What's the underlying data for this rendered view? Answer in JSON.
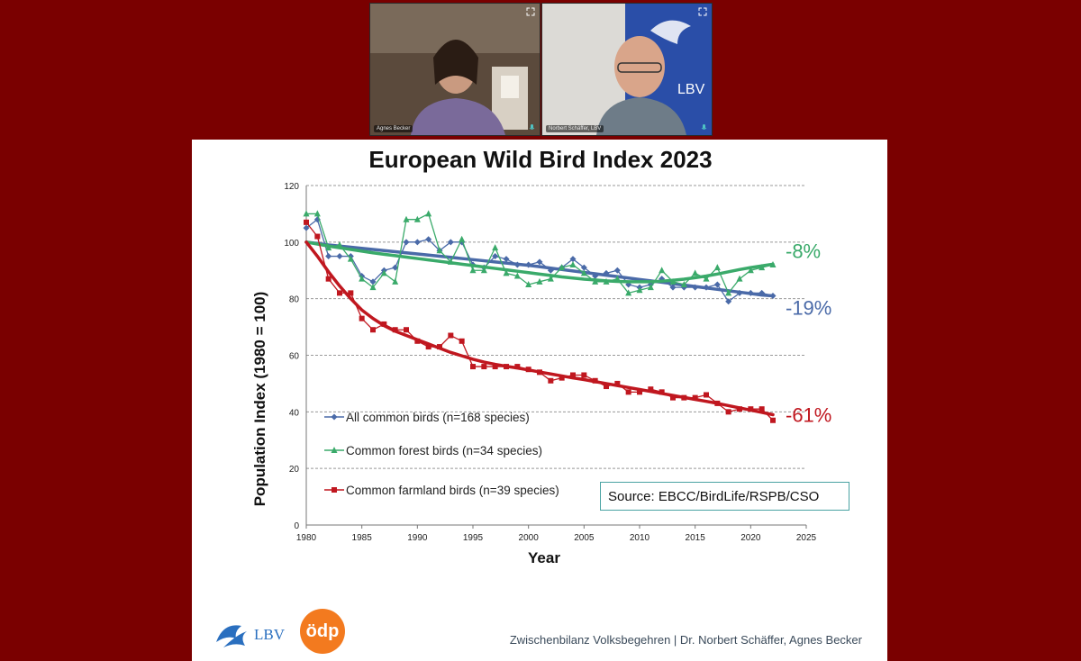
{
  "participants": [
    {
      "name": "Agnes Becker"
    },
    {
      "name": "Norbert Schäffer, LBV"
    }
  ],
  "slide": {
    "title": "European Wild Bird Index 2023",
    "source": "Source: EBCC/BirdLife/RSPB/CSO",
    "footer": "Zwischenbilanz Volksbegehren  | Dr. Norbert Schäffer, Agnes Becker",
    "logos": {
      "lbv": "LBV",
      "oedp": "ödp"
    }
  },
  "chart_data": {
    "type": "line",
    "title": "European Wild Bird Index 2023",
    "xlabel": "Year",
    "ylabel": "Population Index (1980 = 100)",
    "xlim": [
      1980,
      2025
    ],
    "ylim": [
      0,
      120
    ],
    "xticks": [
      1980,
      1985,
      1990,
      1995,
      2000,
      2005,
      2010,
      2015,
      2020,
      2025
    ],
    "yticks": [
      0,
      20,
      40,
      60,
      80,
      100,
      120
    ],
    "grid": true,
    "legend_position": "bottom-left",
    "series": [
      {
        "name": "All common birds (n=168 species)",
        "color": "#4a6aa8",
        "marker": "diamond",
        "x": [
          1980,
          1981,
          1982,
          1983,
          1984,
          1985,
          1986,
          1987,
          1988,
          1989,
          1990,
          1991,
          1992,
          1993,
          1994,
          1995,
          1996,
          1997,
          1998,
          1999,
          2000,
          2001,
          2002,
          2003,
          2004,
          2005,
          2006,
          2007,
          2008,
          2009,
          2010,
          2011,
          2012,
          2013,
          2014,
          2015,
          2016,
          2017,
          2018,
          2019,
          2020,
          2021,
          2022
        ],
        "values": [
          105,
          108,
          95,
          95,
          95,
          88,
          86,
          90,
          91,
          100,
          100,
          101,
          97,
          100,
          100,
          92,
          91,
          95,
          94,
          92,
          92,
          93,
          90,
          91,
          94,
          91,
          88,
          89,
          90,
          85,
          84,
          85,
          87,
          84,
          84,
          84,
          84,
          85,
          79,
          82,
          82,
          82,
          81
        ],
        "trend": [
          100,
          99.5,
          99,
          98.6,
          98.2,
          97.8,
          97.4,
          97,
          96.6,
          96.2,
          95.8,
          95.4,
          95,
          94.6,
          94.2,
          93.8,
          93.4,
          93,
          92.6,
          92.2,
          91.8,
          91.3,
          90.8,
          90.3,
          89.8,
          89.3,
          88.8,
          88.3,
          87.8,
          87.3,
          86.8,
          86.3,
          85.8,
          85.3,
          84.8,
          84.3,
          83.8,
          83.3,
          82.8,
          82.3,
          81.8,
          81.3,
          81
        ],
        "change_label": "-19%"
      },
      {
        "name": "Common forest birds (n=34 species)",
        "color": "#3aaa6a",
        "marker": "triangle",
        "x": [
          1980,
          1981,
          1982,
          1983,
          1984,
          1985,
          1986,
          1987,
          1988,
          1989,
          1990,
          1991,
          1992,
          1993,
          1994,
          1995,
          1996,
          1997,
          1998,
          1999,
          2000,
          2001,
          2002,
          2003,
          2004,
          2005,
          2006,
          2007,
          2008,
          2009,
          2010,
          2011,
          2012,
          2013,
          2014,
          2015,
          2016,
          2017,
          2018,
          2019,
          2020,
          2021,
          2022
        ],
        "values": [
          110,
          110,
          98,
          99,
          94,
          87,
          84,
          89,
          86,
          108,
          108,
          110,
          97,
          93,
          101,
          90,
          90,
          98,
          89,
          88,
          85,
          86,
          87,
          91,
          92,
          89,
          86,
          86,
          87,
          82,
          83,
          84,
          90,
          86,
          85,
          89,
          87,
          91,
          82,
          87,
          90,
          91,
          92
        ],
        "trend": [
          100,
          99.3,
          98.6,
          98,
          97.4,
          96.8,
          96.2,
          95.7,
          95.2,
          94.7,
          94.2,
          93.7,
          93.2,
          92.7,
          92.2,
          91.7,
          91.2,
          90.7,
          90.2,
          89.7,
          89.2,
          88.7,
          88.2,
          87.7,
          87.3,
          86.9,
          86.6,
          86.3,
          86.1,
          86,
          86,
          86,
          86.2,
          86.5,
          86.9,
          87.4,
          88,
          88.7,
          89.5,
          90.3,
          91,
          91.6,
          92.2
        ],
        "change_label": "-8%"
      },
      {
        "name": "Common farmland birds (n=39 species)",
        "color": "#c0171f",
        "marker": "square",
        "x": [
          1980,
          1981,
          1982,
          1983,
          1984,
          1985,
          1986,
          1987,
          1988,
          1989,
          1990,
          1991,
          1992,
          1993,
          1994,
          1995,
          1996,
          1997,
          1998,
          1999,
          2000,
          2001,
          2002,
          2003,
          2004,
          2005,
          2006,
          2007,
          2008,
          2009,
          2010,
          2011,
          2012,
          2013,
          2014,
          2015,
          2016,
          2017,
          2018,
          2019,
          2020,
          2021,
          2022
        ],
        "values": [
          107,
          102,
          87,
          82,
          82,
          73,
          69,
          71,
          69,
          69,
          65,
          63,
          63,
          67,
          65,
          56,
          56,
          56,
          56,
          56,
          55,
          54,
          51,
          52,
          53,
          53,
          51,
          49,
          50,
          47,
          47,
          48,
          47,
          45,
          45,
          45,
          46,
          43,
          40,
          41,
          41,
          41,
          37
        ],
        "trend": [
          100,
          95,
          89.5,
          84.5,
          80,
          76,
          73,
          70.5,
          68.5,
          67,
          65.5,
          64,
          62.5,
          61,
          59.8,
          58.6,
          57.6,
          56.8,
          56.1,
          55.5,
          54.8,
          54.1,
          53.4,
          52.7,
          52,
          51.4,
          50.7,
          50,
          49.3,
          48.6,
          47.9,
          47.2,
          46.5,
          45.8,
          45.1,
          44.4,
          43.7,
          43,
          42.2,
          41.4,
          40.6,
          39.8,
          39
        ],
        "change_label": "-61%"
      }
    ]
  }
}
